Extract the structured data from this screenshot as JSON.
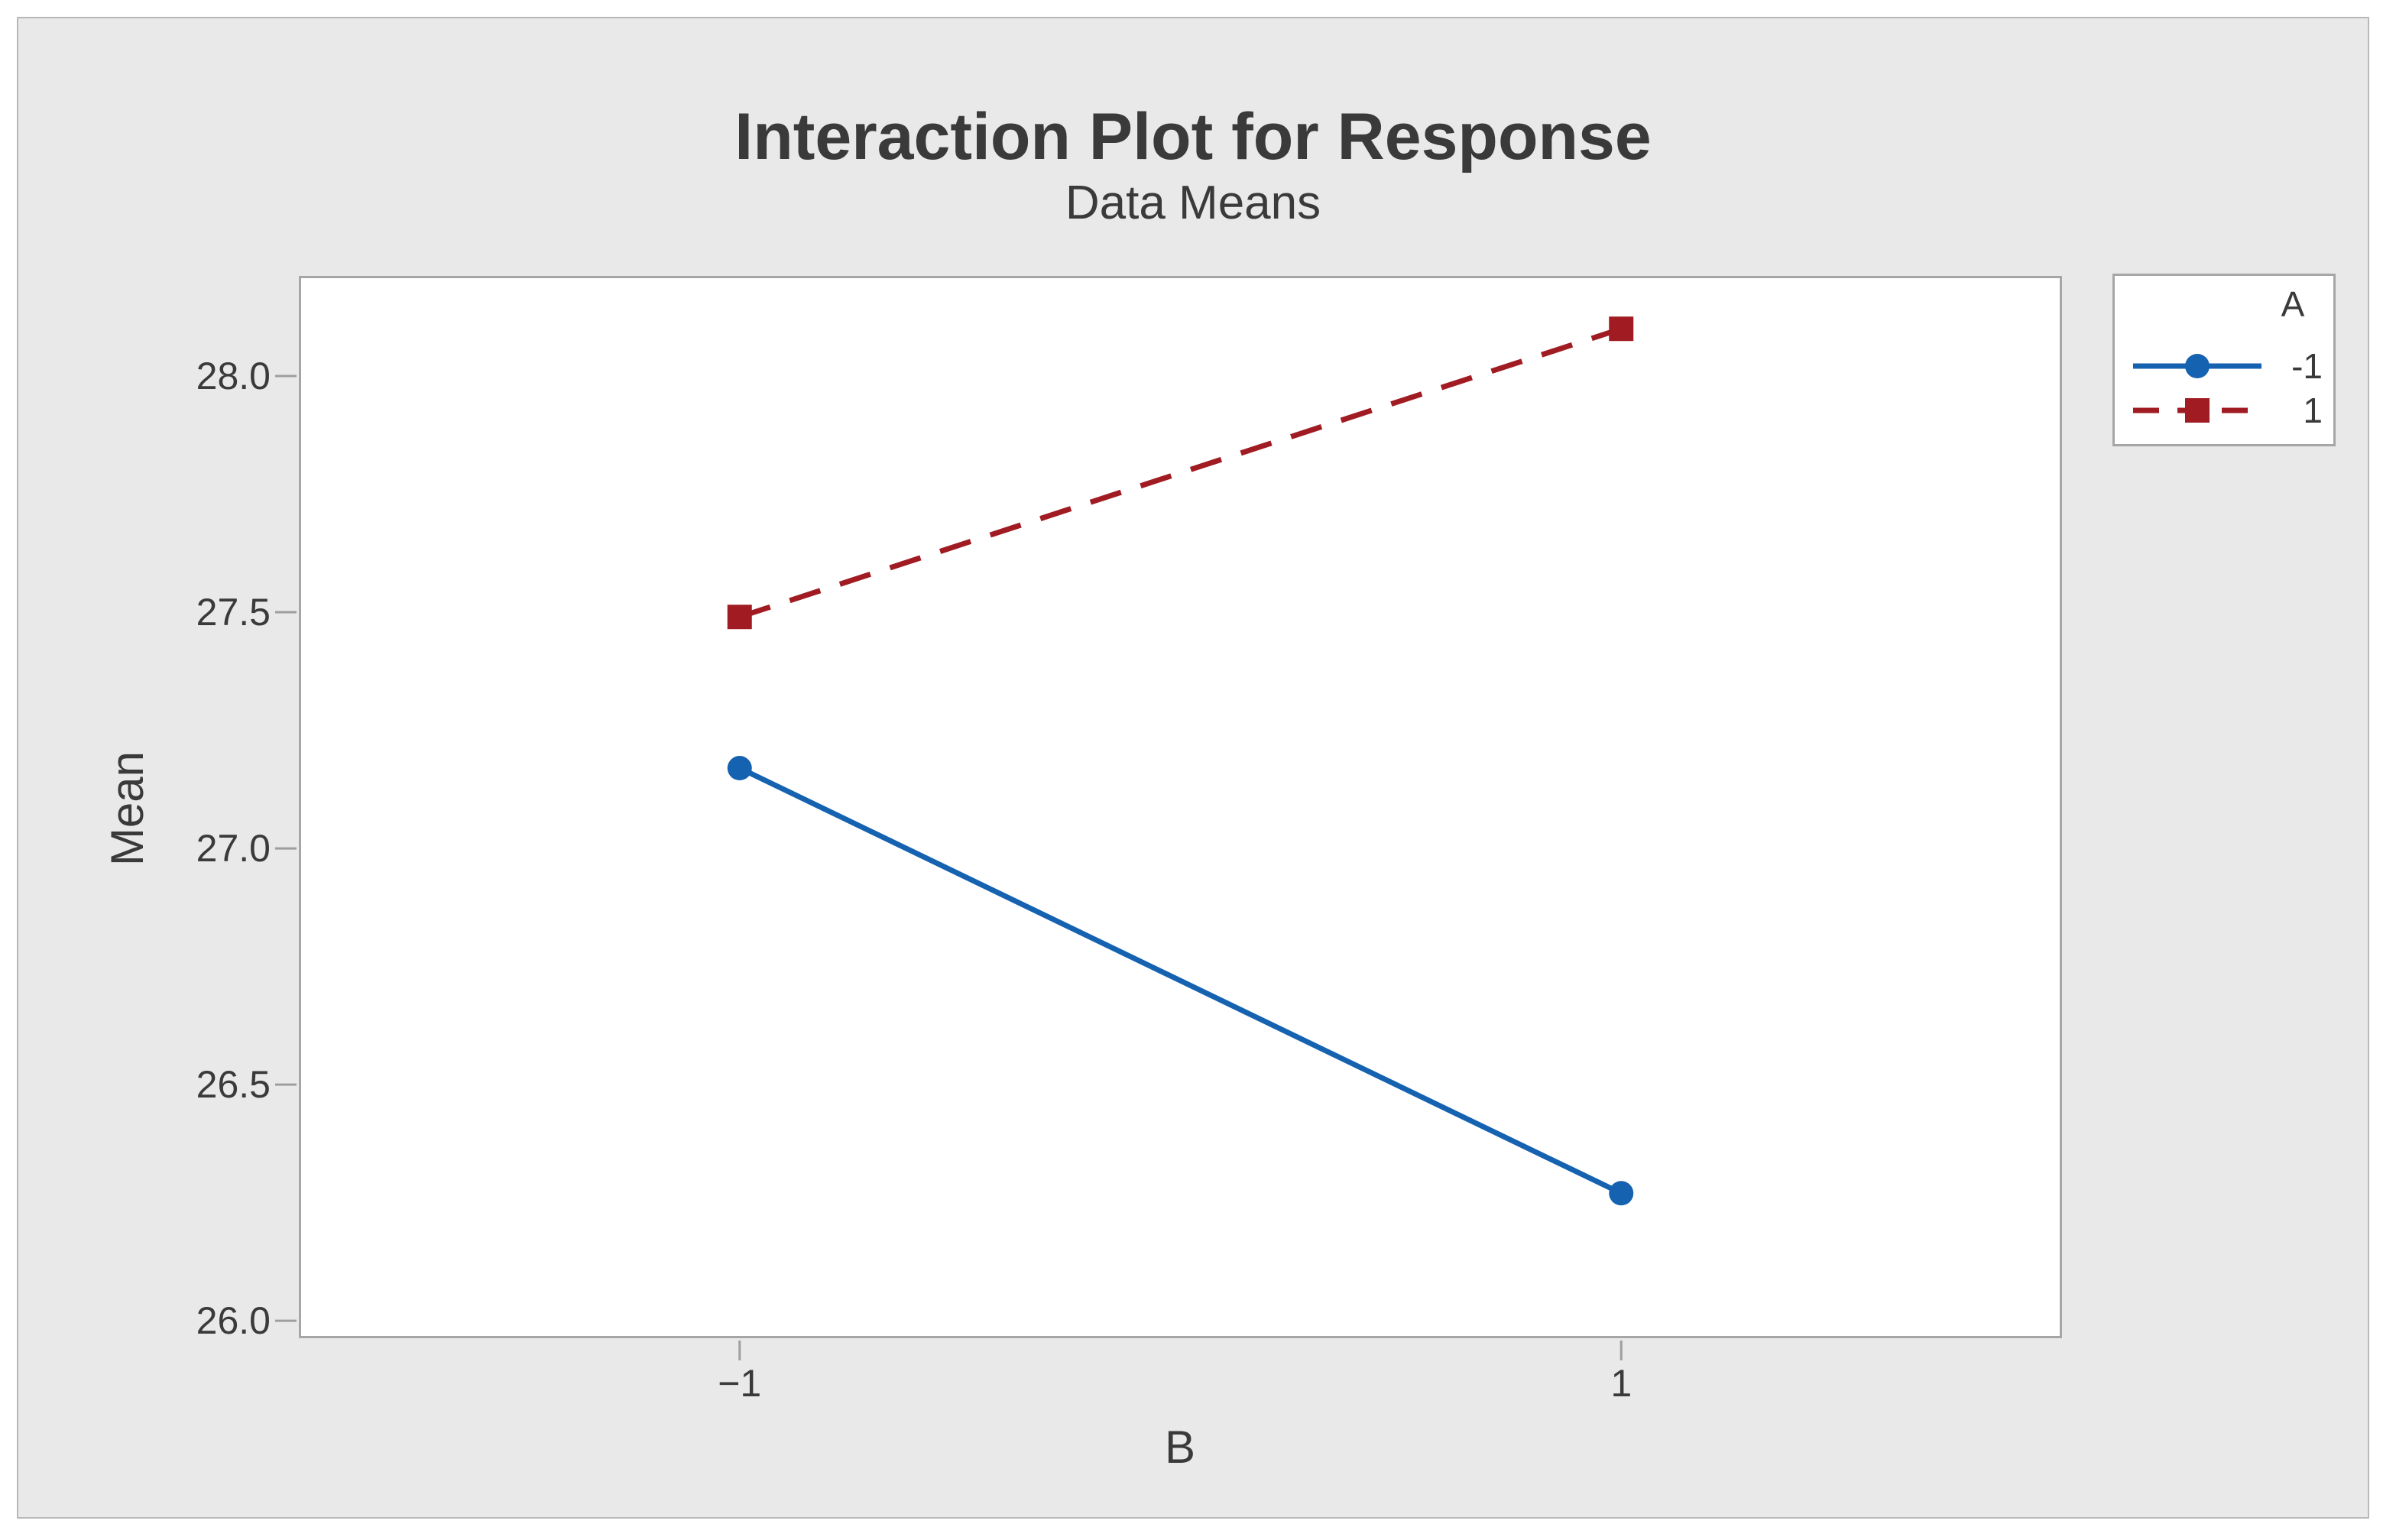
{
  "window": {
    "background_color": "#FFFFFF",
    "panel_background_color": "#E9E9E9",
    "plot_background_color": "#FFFFFF",
    "axis_color": "#A6A6A6",
    "text_color": "#3A3A3A"
  },
  "legend": {
    "title": "A",
    "items": [
      {
        "label": "-1",
        "marker": "circle",
        "line_style": "solid",
        "color": "#1562B0"
      },
      {
        "label": "1",
        "marker": "square",
        "line_style": "dashed",
        "color": "#A01C22"
      }
    ]
  },
  "chart_data": {
    "type": "line",
    "title": "Interaction Plot for Response",
    "subtitle": "Data Means",
    "xlabel": "B",
    "ylabel": "Mean",
    "categories": [
      -1,
      1
    ],
    "x_tick_labels": [
      "−1",
      "1"
    ],
    "y_ticks": [
      26.0,
      26.5,
      27.0,
      27.5,
      28.0
    ],
    "y_tick_labels": [
      "26.0",
      "26.5",
      "27.0",
      "27.5",
      "28.0"
    ],
    "ylim": [
      25.963,
      28.212
    ],
    "grid": false,
    "legend_title": "A",
    "legend_position": "outside-top-right",
    "series": [
      {
        "name": "-1",
        "values": [
          27.17,
          26.27
        ],
        "color": "#1562B0",
        "line_style": "solid",
        "marker": "circle"
      },
      {
        "name": "1",
        "values": [
          27.49,
          28.1
        ],
        "color": "#A01C22",
        "line_style": "dashed",
        "marker": "square"
      }
    ]
  }
}
